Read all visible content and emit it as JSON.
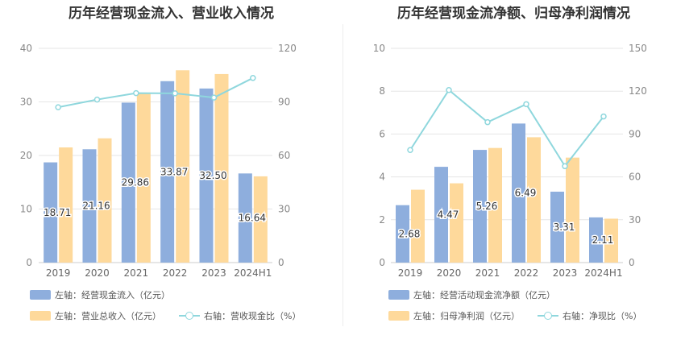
{
  "colors": {
    "bar1": "#8eaedd",
    "bar2": "#fed99b",
    "line": "#8fd7dd",
    "grid": "#e6e6e6",
    "axis_text": "#888888"
  },
  "chart_data": [
    {
      "type": "bar",
      "title": "历年经营现金流入、营业收入情况",
      "categories": [
        "2019",
        "2020",
        "2021",
        "2022",
        "2023",
        "2024H1"
      ],
      "left_axis": {
        "min": 0,
        "max": 40,
        "ticks": [
          "0",
          "10",
          "20",
          "30",
          "40"
        ]
      },
      "right_axis": {
        "min": 0,
        "max": 120,
        "ticks": [
          "0",
          "30",
          "60",
          "90",
          "120"
        ]
      },
      "series": [
        {
          "name": "左轴：经营现金流入（亿元）",
          "axis": "left",
          "kind": "bar",
          "color": "#8eaedd",
          "values": [
            18.71,
            21.16,
            29.86,
            33.87,
            32.5,
            16.64
          ],
          "labels": [
            "18.71",
            "21.16",
            "29.86",
            "33.87",
            "32.50",
            "16.64"
          ]
        },
        {
          "name": "左轴：营业总收入（亿元）",
          "axis": "left",
          "kind": "bar",
          "color": "#fed99b",
          "values": [
            21.5,
            23.2,
            31.5,
            35.9,
            35.2,
            16.1
          ]
        },
        {
          "name": "右轴：营收现金比（%）",
          "axis": "right",
          "kind": "line",
          "color": "#8fd7dd",
          "values": [
            87.0,
            91.3,
            94.9,
            94.8,
            92.4,
            103.4
          ]
        }
      ],
      "legend_placement": "bottom",
      "grid": true
    },
    {
      "type": "bar",
      "title": "历年经营现金流净额、归母净利润情况",
      "categories": [
        "2019",
        "2020",
        "2021",
        "2022",
        "2023",
        "2024H1"
      ],
      "left_axis": {
        "min": 0,
        "max": 10,
        "ticks": [
          "0",
          "2",
          "4",
          "6",
          "8",
          "10"
        ]
      },
      "right_axis": {
        "min": 0,
        "max": 150,
        "ticks": [
          "0",
          "30",
          "60",
          "90",
          "120",
          "150"
        ]
      },
      "series": [
        {
          "name": "左轴：经营活动现金流净额（亿元）",
          "axis": "left",
          "kind": "bar",
          "color": "#8eaedd",
          "values": [
            2.68,
            4.47,
            5.26,
            6.49,
            3.31,
            2.11
          ],
          "labels": [
            "2.68",
            "4.47",
            "5.26",
            "6.49",
            "3.31",
            "2.11"
          ]
        },
        {
          "name": "左轴：归母净利润（亿元）",
          "axis": "left",
          "kind": "bar",
          "color": "#fed99b",
          "values": [
            3.4,
            3.7,
            5.35,
            5.85,
            4.9,
            2.05
          ]
        },
        {
          "name": "右轴：净现比（%）",
          "axis": "right",
          "kind": "line",
          "color": "#8fd7dd",
          "values": [
            78.8,
            120.8,
            98.3,
            110.9,
            67.5,
            102.3
          ]
        }
      ],
      "legend_placement": "bottom",
      "grid": true
    }
  ]
}
